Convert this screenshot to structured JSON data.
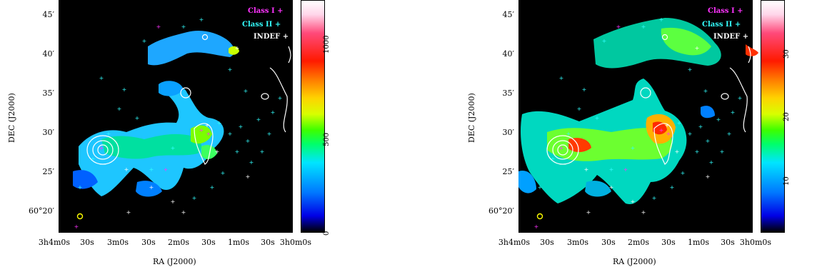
{
  "panels": [
    {
      "id": "left",
      "y_axis_label": "DEC (J2000)",
      "x_axis_label": "RA (J2000)",
      "y_ticks": [
        "45′",
        "40′",
        "35′",
        "30′",
        "25′",
        "60°20′"
      ],
      "x_ticks": [
        "3h4m0s",
        "30s",
        "3m0s",
        "30s",
        "2m0s",
        "30s",
        "1m0s",
        "30s",
        "3h0m0s"
      ],
      "colorbar_ticks": [
        "0",
        "500",
        "1000"
      ],
      "legend": [
        {
          "label": "Class I",
          "symbol": "+",
          "color": "#ff33ff"
        },
        {
          "label": "Class II",
          "symbol": "+",
          "color": "#33ffff"
        },
        {
          "label": "INDEF",
          "symbol": "+",
          "color": "#ffffff"
        }
      ]
    },
    {
      "id": "right",
      "y_axis_label": "DEC (J2000)",
      "x_axis_label": "RA (J2000)",
      "y_ticks": [
        "45′",
        "40′",
        "35′",
        "30′",
        "25′",
        "60°20′"
      ],
      "x_ticks": [
        "3h4m0s",
        "30s",
        "3m0s",
        "30s",
        "2m0s",
        "30s",
        "1m0s",
        "30s",
        "3h0m0s"
      ],
      "colorbar_ticks": [
        "10",
        "20",
        "30"
      ],
      "legend": [
        {
          "label": "Class I",
          "symbol": "+",
          "color": "#ff33ff"
        },
        {
          "label": "Class II",
          "symbol": "+",
          "color": "#33ffff"
        },
        {
          "label": "INDEF",
          "symbol": "+",
          "color": "#ffffff"
        }
      ]
    }
  ]
}
